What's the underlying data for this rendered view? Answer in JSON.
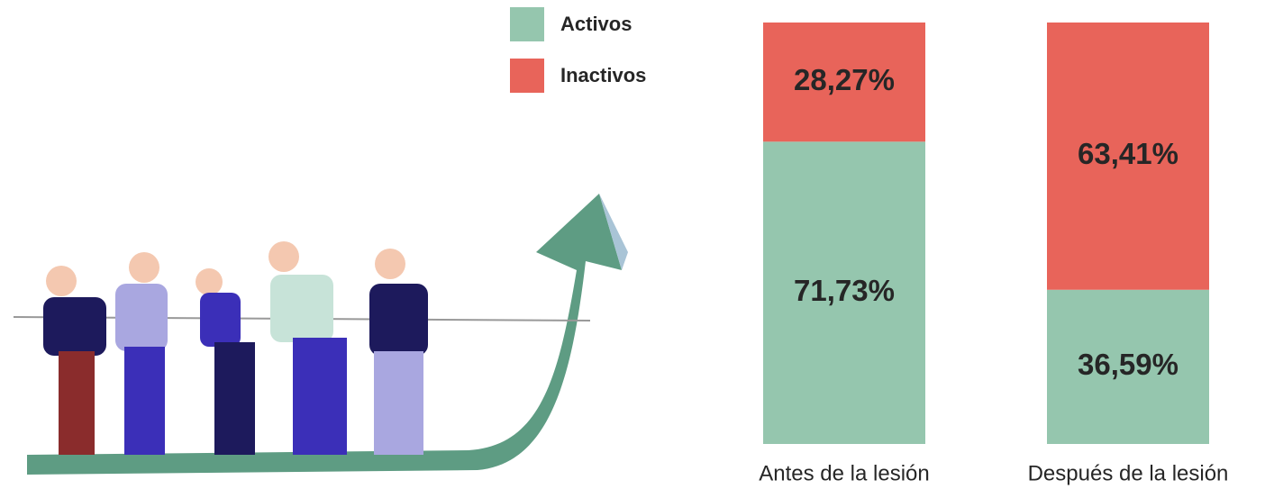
{
  "chart_data": {
    "type": "bar",
    "stacked": true,
    "categories": [
      "Antes de la lesión",
      "Después de la lesión"
    ],
    "series": [
      {
        "name": "Activos",
        "color": "#95c6ae",
        "values": [
          71.73,
          36.59
        ],
        "value_labels": [
          "71,73%",
          "36,59%"
        ]
      },
      {
        "name": "Inactivos",
        "color": "#e8645a",
        "values": [
          28.27,
          63.41
        ],
        "value_labels": [
          "28,27%",
          "63,41%"
        ]
      }
    ],
    "ylim": [
      0,
      100
    ]
  }
}
